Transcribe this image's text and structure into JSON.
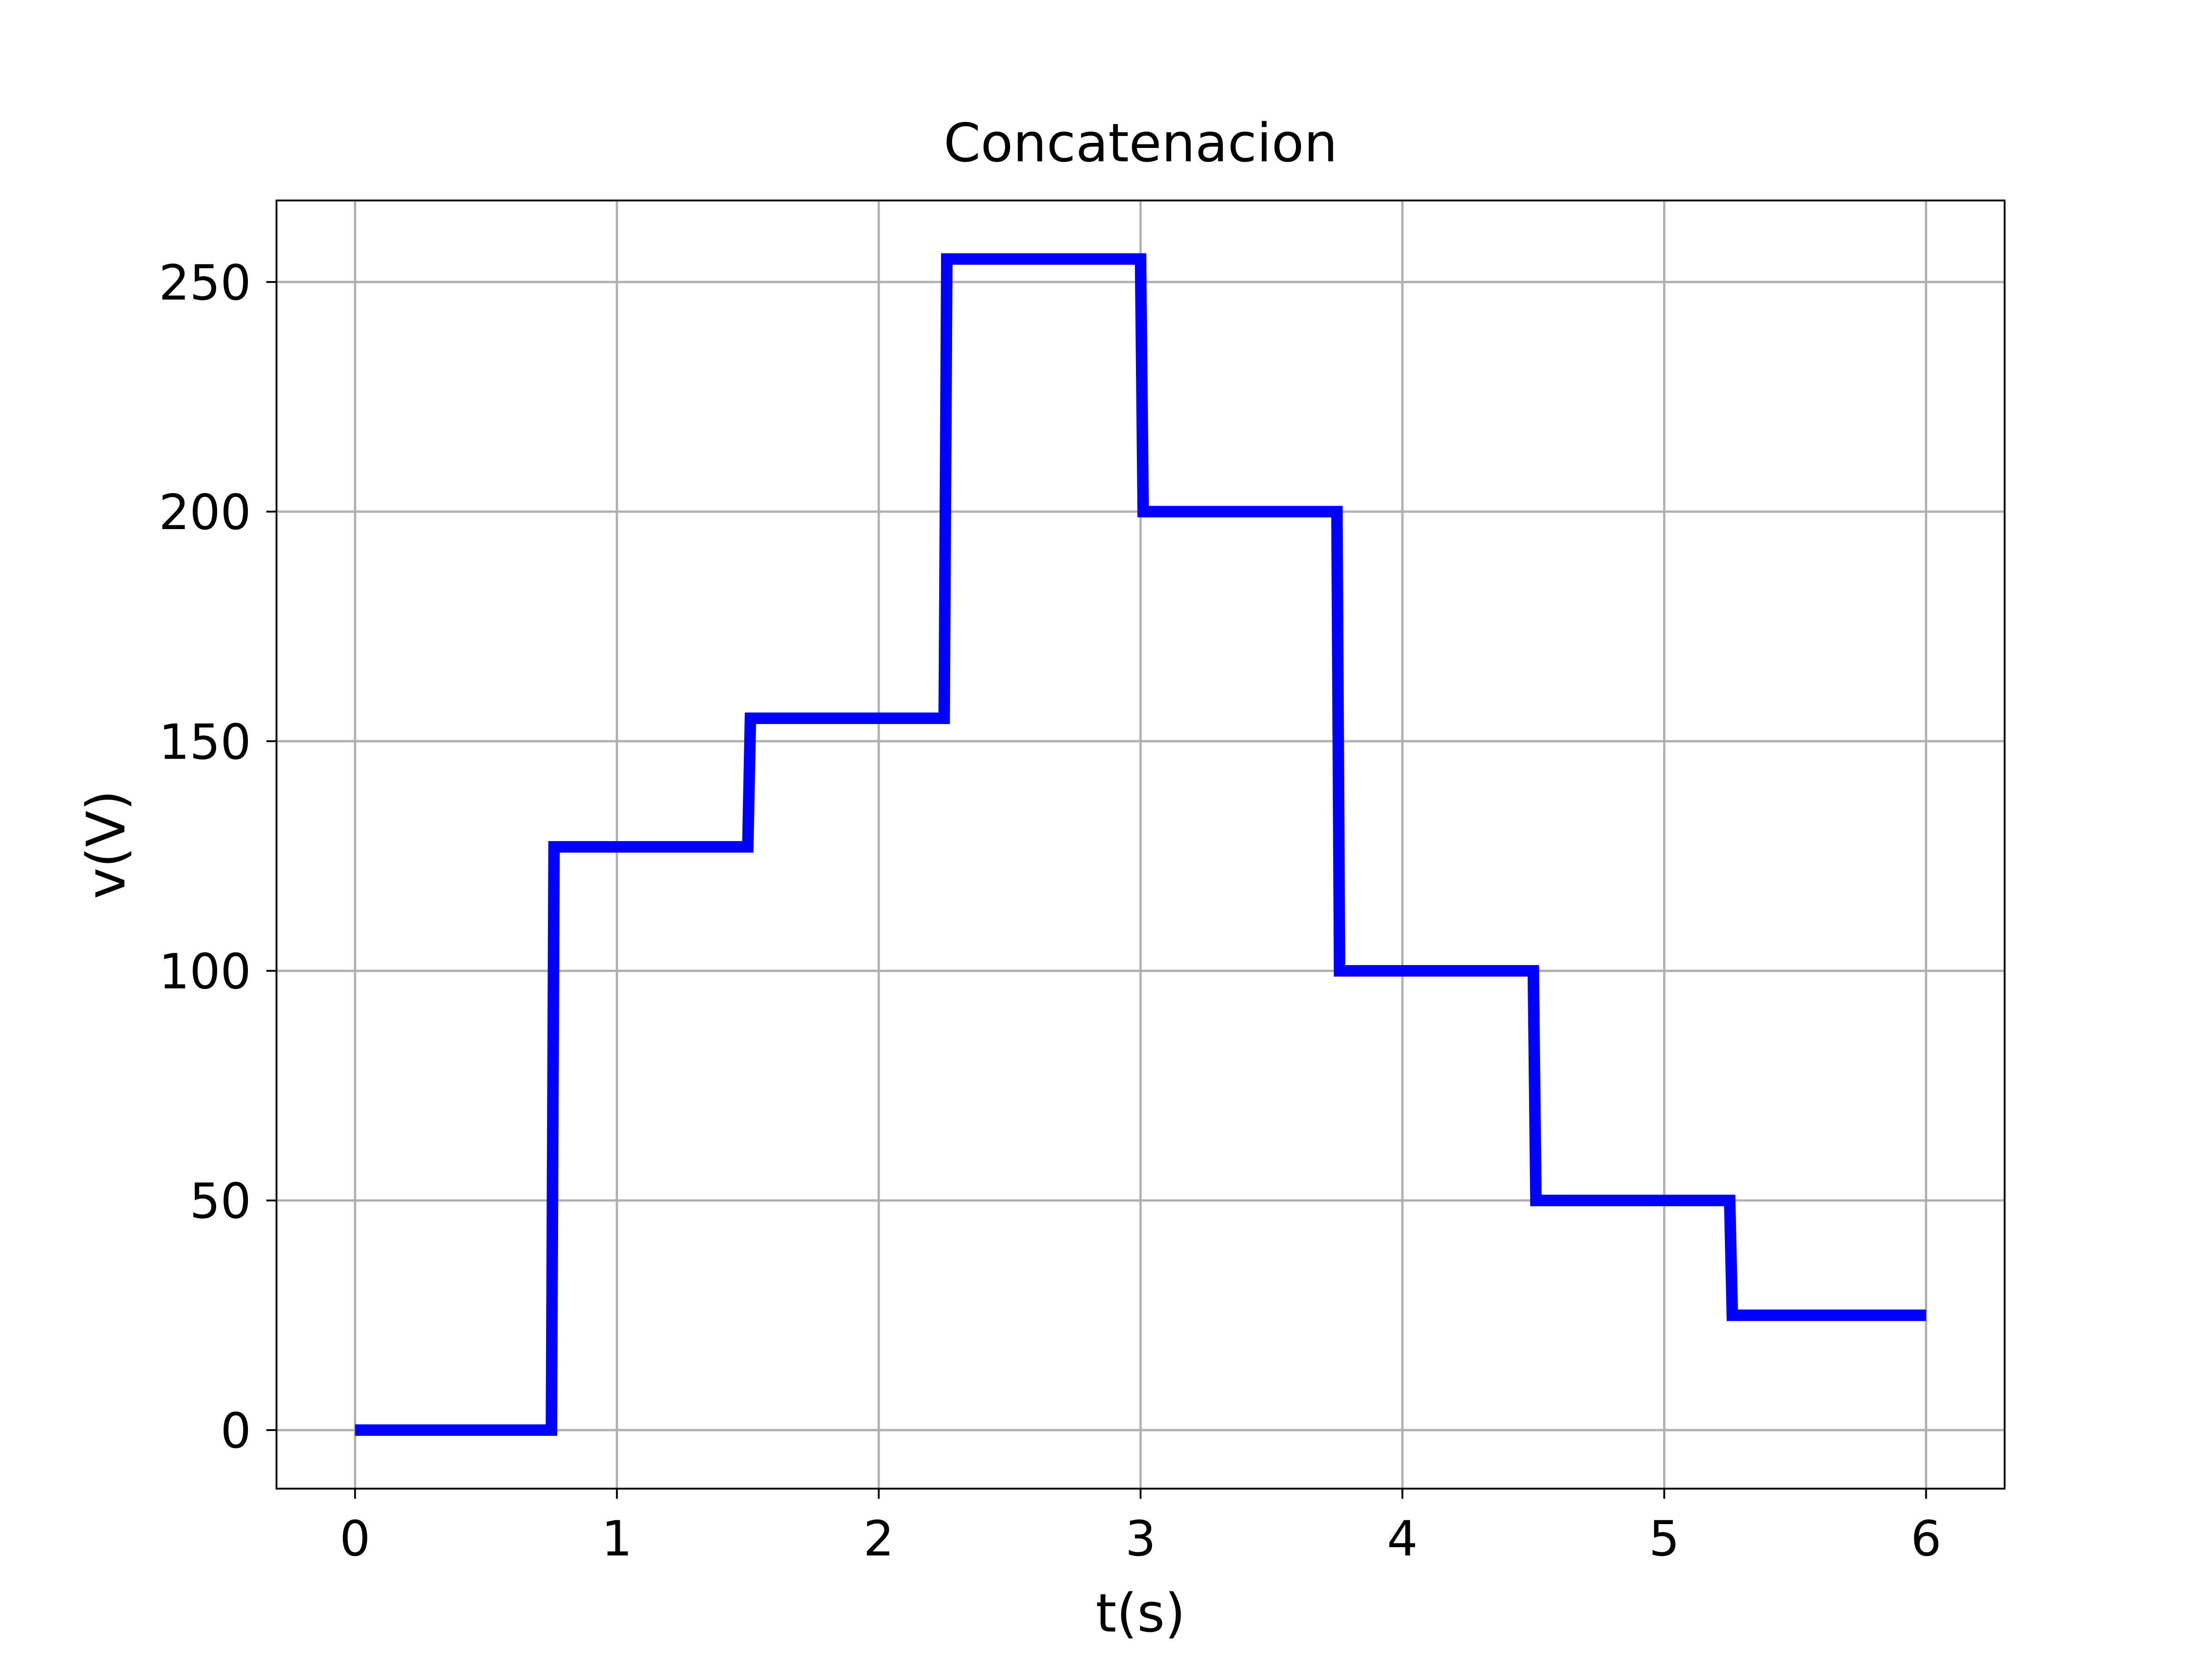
{
  "chart_data": {
    "type": "line",
    "title": "Concatenacion",
    "xlabel": "t(s)",
    "ylabel": "v(V)",
    "xlim": [
      -0.3,
      6.3
    ],
    "ylim": [
      -12.75,
      267.75
    ],
    "x_ticks": [
      0,
      1,
      2,
      3,
      4,
      5,
      6
    ],
    "x_tick_labels": [
      "0",
      "1",
      "2",
      "3",
      "4",
      "5",
      "6"
    ],
    "y_ticks": [
      0,
      50,
      100,
      150,
      200,
      250
    ],
    "y_tick_labels": [
      "0",
      "50",
      "100",
      "150",
      "200",
      "250"
    ],
    "grid": true,
    "series": [
      {
        "color": "#0000ff",
        "x": [
          0,
          0.75,
          0.76,
          1.5,
          1.51,
          2.25,
          2.26,
          3.0,
          3.01,
          3.75,
          3.76,
          4.5,
          4.51,
          5.25,
          5.26,
          6.0
        ],
        "y": [
          0,
          0,
          127,
          127,
          155,
          155,
          255,
          255,
          200,
          200,
          100,
          100,
          50,
          50,
          25,
          25
        ]
      }
    ]
  }
}
